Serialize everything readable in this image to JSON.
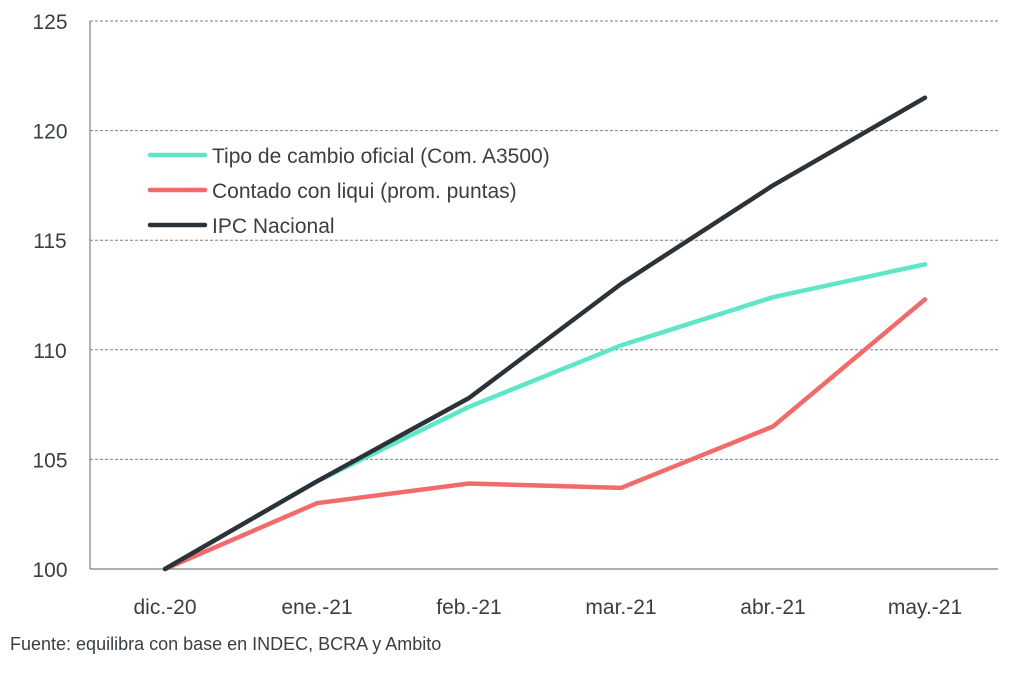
{
  "chart_data": {
    "type": "line",
    "title": "",
    "xlabel": "",
    "ylabel": "",
    "categories": [
      "dic.-20",
      "ene.-21",
      "feb.-21",
      "mar.-21",
      "abr.-21",
      "may.-21"
    ],
    "ylim": [
      100,
      125
    ],
    "yticks": [
      100,
      105,
      110,
      115,
      120,
      125
    ],
    "grid": true,
    "legend_position": "upper-left",
    "series": [
      {
        "name": "Tipo de cambio oficial (Com. A3500)",
        "color": "#5ee6c8",
        "values": [
          100,
          104.0,
          107.4,
          110.2,
          112.4,
          113.9
        ]
      },
      {
        "name": "Contado con liqui (prom. puntas)",
        "color": "#f26b6b",
        "values": [
          100,
          103.0,
          103.9,
          103.7,
          106.5,
          112.3
        ]
      },
      {
        "name": "IPC Nacional",
        "color": "#2b3238",
        "values": [
          100,
          104.0,
          107.8,
          113.0,
          117.5,
          121.5
        ]
      }
    ]
  },
  "source_note": "Fuente: equilibra con base en INDEC, BCRA y Ambito"
}
